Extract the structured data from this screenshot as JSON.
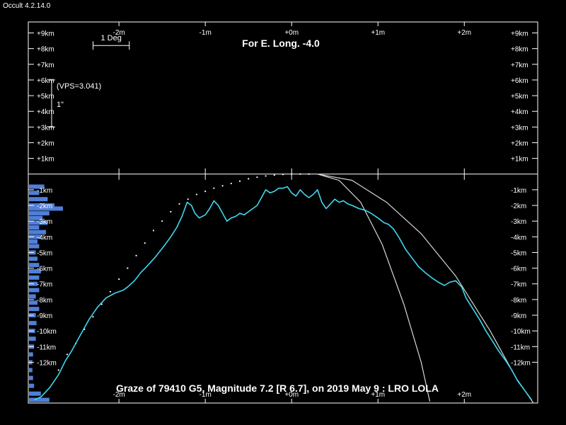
{
  "app": {
    "title": "Occult 4.2.14.0"
  },
  "colors": {
    "background": "#000000",
    "frame": "#ffffff",
    "profile": "#40d8f0",
    "histogram": "#4f7fd8",
    "curves": "#d8d8d8",
    "dots": "#ffffff"
  },
  "chart_data": {
    "type": "line",
    "title": "For E. Long. -4.0",
    "caption": "Graze of  79410 G5,  Magnitude 7.2 [R 6.7],  on 2019 May  9  :  LRO LOLA",
    "x_unit": "m (arcmin)",
    "y_unit": "km",
    "xlim": [
      -3.05,
      2.85
    ],
    "ylim": [
      -14.6,
      9.7
    ],
    "grid": false,
    "x_ticks": [
      {
        "value": -2,
        "label": "-2m"
      },
      {
        "value": -1,
        "label": "-1m"
      },
      {
        "value": 0,
        "label": "+0m"
      },
      {
        "value": 1,
        "label": "+1m"
      },
      {
        "value": 2,
        "label": "+2m"
      }
    ],
    "y_ticks_upper": [
      {
        "value": 9,
        "label": "+9km"
      },
      {
        "value": 8,
        "label": "+8km"
      },
      {
        "value": 7,
        "label": "+7km"
      },
      {
        "value": 6,
        "label": "+6km"
      },
      {
        "value": 5,
        "label": "+5km"
      },
      {
        "value": 4,
        "label": "+4km"
      },
      {
        "value": 3,
        "label": "+3km"
      },
      {
        "value": 2,
        "label": "+2km"
      },
      {
        "value": 1,
        "label": "+1km"
      }
    ],
    "y_ticks_lower": [
      {
        "value": -1,
        "label": "-1km"
      },
      {
        "value": -2,
        "label": "-2km"
      },
      {
        "value": -3,
        "label": "-3km"
      },
      {
        "value": -4,
        "label": "-4km"
      },
      {
        "value": -5,
        "label": "-5km"
      },
      {
        "value": -6,
        "label": "-6km"
      },
      {
        "value": -7,
        "label": "-7km"
      },
      {
        "value": -8,
        "label": "-8km"
      },
      {
        "value": -9,
        "label": "-9km"
      },
      {
        "value": -10,
        "label": "-10km"
      },
      {
        "value": -11,
        "label": "-11km"
      },
      {
        "value": -12,
        "label": "-12km"
      }
    ],
    "scale_bar": {
      "label": "1 Deg",
      "x_from": -2.3,
      "x_to": -1.88,
      "y": 8.2
    },
    "vertical_scale": {
      "label_vps": "(VPS=3.041)",
      "label_unit": "1\"",
      "x": -2.78,
      "y_from": 3.0,
      "y_to": 6.0
    },
    "profile": [
      [
        -2.98,
        -14.4
      ],
      [
        -2.9,
        -14.2
      ],
      [
        -2.8,
        -13.6
      ],
      [
        -2.7,
        -12.8
      ],
      [
        -2.62,
        -11.9
      ],
      [
        -2.55,
        -11.3
      ],
      [
        -2.45,
        -10.3
      ],
      [
        -2.35,
        -9.3
      ],
      [
        -2.25,
        -8.5
      ],
      [
        -2.15,
        -7.9
      ],
      [
        -2.05,
        -7.6
      ],
      [
        -1.95,
        -7.4
      ],
      [
        -1.9,
        -7.2
      ],
      [
        -1.82,
        -6.8
      ],
      [
        -1.75,
        -6.3
      ],
      [
        -1.68,
        -5.9
      ],
      [
        -1.58,
        -5.3
      ],
      [
        -1.48,
        -4.6
      ],
      [
        -1.4,
        -4.0
      ],
      [
        -1.33,
        -3.4
      ],
      [
        -1.27,
        -2.7
      ],
      [
        -1.21,
        -1.8
      ],
      [
        -1.16,
        -2.0
      ],
      [
        -1.12,
        -2.5
      ],
      [
        -1.07,
        -2.8
      ],
      [
        -1.0,
        -2.6
      ],
      [
        -0.95,
        -2.2
      ],
      [
        -0.9,
        -1.7
      ],
      [
        -0.85,
        -2.0
      ],
      [
        -0.8,
        -2.5
      ],
      [
        -0.75,
        -3.0
      ],
      [
        -0.7,
        -2.8
      ],
      [
        -0.65,
        -2.7
      ],
      [
        -0.6,
        -2.5
      ],
      [
        -0.55,
        -2.6
      ],
      [
        -0.5,
        -2.4
      ],
      [
        -0.45,
        -2.2
      ],
      [
        -0.4,
        -2.0
      ],
      [
        -0.35,
        -1.5
      ],
      [
        -0.3,
        -1.0
      ],
      [
        -0.25,
        -1.2
      ],
      [
        -0.2,
        -1.1
      ],
      [
        -0.15,
        -0.9
      ],
      [
        -0.1,
        -0.9
      ],
      [
        -0.05,
        -0.8
      ],
      [
        0.0,
        -1.2
      ],
      [
        0.05,
        -1.4
      ],
      [
        0.1,
        -1.0
      ],
      [
        0.15,
        -1.3
      ],
      [
        0.2,
        -1.5
      ],
      [
        0.25,
        -1.3
      ],
      [
        0.3,
        -1.0
      ],
      [
        0.35,
        -1.8
      ],
      [
        0.4,
        -2.2
      ],
      [
        0.45,
        -1.9
      ],
      [
        0.5,
        -1.6
      ],
      [
        0.55,
        -1.8
      ],
      [
        0.6,
        -1.7
      ],
      [
        0.65,
        -1.9
      ],
      [
        0.7,
        -2.0
      ],
      [
        0.78,
        -2.2
      ],
      [
        0.85,
        -2.3
      ],
      [
        0.92,
        -2.5
      ],
      [
        1.0,
        -2.8
      ],
      [
        1.07,
        -3.1
      ],
      [
        1.12,
        -3.2
      ],
      [
        1.18,
        -3.5
      ],
      [
        1.25,
        -4.1
      ],
      [
        1.32,
        -4.8
      ],
      [
        1.4,
        -5.4
      ],
      [
        1.47,
        -5.9
      ],
      [
        1.55,
        -6.3
      ],
      [
        1.62,
        -6.6
      ],
      [
        1.7,
        -6.9
      ],
      [
        1.77,
        -7.1
      ],
      [
        1.83,
        -6.9
      ],
      [
        1.9,
        -6.8
      ],
      [
        1.97,
        -7.2
      ],
      [
        2.02,
        -7.9
      ],
      [
        2.1,
        -8.6
      ],
      [
        2.18,
        -9.3
      ],
      [
        2.25,
        -10.0
      ],
      [
        2.32,
        -10.6
      ],
      [
        2.4,
        -11.3
      ],
      [
        2.48,
        -11.9
      ],
      [
        2.55,
        -12.5
      ],
      [
        2.62,
        -13.2
      ],
      [
        2.7,
        -13.8
      ],
      [
        2.78,
        -14.4
      ]
    ],
    "curves": [
      {
        "description": "steep limb",
        "points": [
          [
            0.3,
            0.0
          ],
          [
            0.55,
            -0.4
          ],
          [
            0.8,
            -1.8
          ],
          [
            1.05,
            -4.5
          ],
          [
            1.3,
            -8.3
          ],
          [
            1.5,
            -12.0
          ],
          [
            1.6,
            -14.5
          ]
        ]
      },
      {
        "description": "shallow limb",
        "points": [
          [
            0.3,
            0.0
          ],
          [
            0.7,
            -0.4
          ],
          [
            1.1,
            -1.8
          ],
          [
            1.5,
            -3.8
          ],
          [
            1.9,
            -6.5
          ],
          [
            2.3,
            -10.0
          ],
          [
            2.6,
            -13.0
          ],
          [
            2.8,
            -14.6
          ]
        ]
      }
    ],
    "dots": [
      [
        -2.7,
        -12.5
      ],
      [
        -2.6,
        -11.5
      ],
      [
        -2.5,
        -10.8
      ],
      [
        -2.4,
        -9.9
      ],
      [
        -2.3,
        -9.1
      ],
      [
        -2.2,
        -8.3
      ],
      [
        -2.1,
        -7.5
      ],
      [
        -2.0,
        -6.7
      ],
      [
        -1.9,
        -6.0
      ],
      [
        -1.8,
        -5.2
      ],
      [
        -1.7,
        -4.4
      ],
      [
        -1.6,
        -3.6
      ],
      [
        -1.5,
        -3.0
      ],
      [
        -1.4,
        -2.4
      ],
      [
        -1.3,
        -1.9
      ],
      [
        -1.2,
        -1.6
      ],
      [
        -1.1,
        -1.3
      ],
      [
        -1.0,
        -1.1
      ],
      [
        -0.9,
        -0.9
      ],
      [
        -0.8,
        -0.75
      ],
      [
        -0.7,
        -0.6
      ],
      [
        -0.6,
        -0.45
      ],
      [
        -0.5,
        -0.3
      ],
      [
        -0.4,
        -0.2
      ],
      [
        -0.3,
        -0.12
      ],
      [
        -0.2,
        -0.06
      ],
      [
        -0.1,
        -0.02
      ],
      [
        0.0,
        0.0
      ],
      [
        0.1,
        0.0
      ],
      [
        0.2,
        0.0
      ]
    ],
    "histogram": [
      [
        -0.8,
        0.45
      ],
      [
        -1.2,
        0.3
      ],
      [
        -1.6,
        0.55
      ],
      [
        -2.0,
        0.75
      ],
      [
        -2.2,
        1.0
      ],
      [
        -2.5,
        0.6
      ],
      [
        -2.8,
        0.4
      ],
      [
        -3.1,
        0.55
      ],
      [
        -3.4,
        0.3
      ],
      [
        -3.7,
        0.5
      ],
      [
        -4.0,
        0.35
      ],
      [
        -4.3,
        0.25
      ],
      [
        -4.6,
        0.3
      ],
      [
        -5.0,
        0.2
      ],
      [
        -5.4,
        0.25
      ],
      [
        -5.8,
        0.3
      ],
      [
        -6.2,
        0.35
      ],
      [
        -6.6,
        0.3
      ],
      [
        -7.0,
        0.25
      ],
      [
        -7.4,
        0.3
      ],
      [
        -7.8,
        0.2
      ],
      [
        -8.2,
        0.25
      ],
      [
        -8.6,
        0.3
      ],
      [
        -9.0,
        0.2
      ],
      [
        -9.5,
        0.22
      ],
      [
        -10.0,
        0.18
      ],
      [
        -10.5,
        0.2
      ],
      [
        -11.0,
        0.15
      ],
      [
        -11.5,
        0.12
      ],
      [
        -12.0,
        0.1
      ],
      [
        -12.5,
        0.1
      ],
      [
        -13.0,
        0.12
      ],
      [
        -13.5,
        0.15
      ],
      [
        -14.0,
        0.35
      ],
      [
        -14.4,
        0.6
      ]
    ]
  }
}
